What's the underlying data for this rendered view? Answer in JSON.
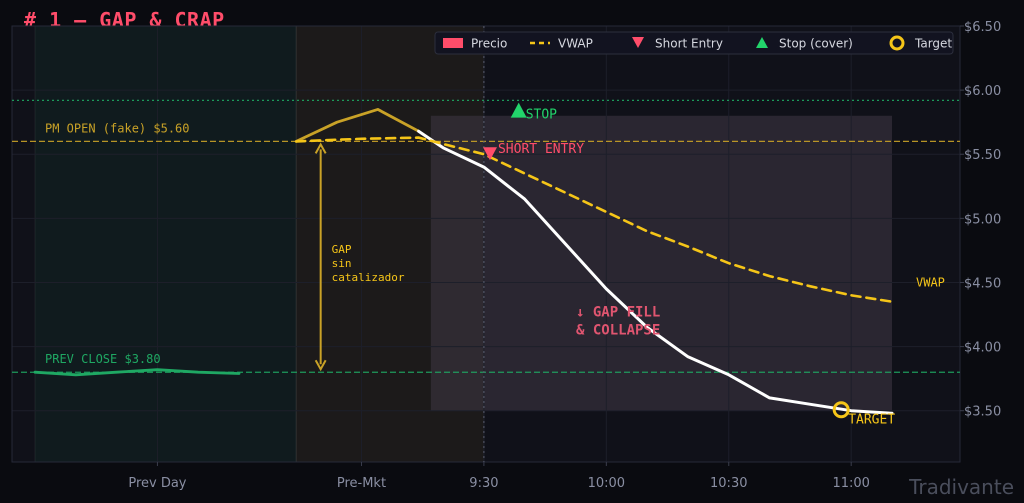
{
  "title": "# 1 — GAP & CRAP",
  "watermark": "Tradivante",
  "colors": {
    "background": "#0a0b10",
    "plot_bg": "#101119",
    "price": "#ffffff",
    "price_prev": "#1fa863",
    "price_premarket": "#c9a227",
    "vwap": "#f5c518",
    "short": "#ff4d6a",
    "stop": "#22d46b",
    "target": "#f5c518",
    "pm_open_line": "#c9a227",
    "prev_close_line": "#1fa863",
    "stop_line": "#1fa863",
    "grid": "#1d1f2a",
    "tick_text": "#8a8fa3",
    "short_zone": "#2a2630",
    "annotation": "#e05570"
  },
  "legend": [
    {
      "label": "Precio",
      "marker": "rect",
      "color": "#ff4d6a"
    },
    {
      "label": "VWAP",
      "marker": "dash",
      "color": "#f5c518"
    },
    {
      "label": "Short Entry",
      "marker": "triangle-down",
      "color": "#ff4d6a"
    },
    {
      "label": "Stop (cover)",
      "marker": "triangle-up",
      "color": "#22d46b"
    },
    {
      "label": "Target",
      "marker": "circle",
      "color": "#f5c518"
    }
  ],
  "chart_data": {
    "type": "line",
    "title": "# 1 — GAP & CRAP",
    "xlabel": "",
    "ylabel": "",
    "x_ticks": [
      "Prev Day",
      "Pre-Mkt",
      "9:30",
      "10:00",
      "10:30",
      "11:00"
    ],
    "y_ticks": [
      "$3.50",
      "$4.00",
      "$4.50",
      "$5.00",
      "$5.50",
      "$6.00",
      "$6.50"
    ],
    "ylim": [
      3.1,
      6.5
    ],
    "xlim": [
      0,
      10
    ],
    "x_tick_positions": [
      1.5,
      4.0,
      5.5,
      7.0,
      8.5,
      10.0
    ],
    "grid": true,
    "legend_position": "top-right",
    "y_axis_side": "right",
    "series": [
      {
        "name": "Precio",
        "segment": "prev_day",
        "x": [
          0.0,
          0.5,
          1.0,
          1.5,
          2.0,
          2.5
        ],
        "y": [
          3.8,
          3.78,
          3.8,
          3.82,
          3.8,
          3.79
        ]
      },
      {
        "name": "Precio",
        "segment": "pre_market",
        "x": [
          3.2,
          3.7,
          4.2,
          4.7
        ],
        "y": [
          5.6,
          5.75,
          5.85,
          5.68
        ]
      },
      {
        "name": "Precio",
        "segment": "session",
        "x": [
          4.7,
          5.0,
          5.5,
          6.0,
          6.5,
          7.0,
          7.5,
          8.0,
          8.5,
          9.0,
          9.5,
          10.0,
          10.5
        ],
        "y": [
          5.68,
          5.55,
          5.4,
          5.15,
          4.8,
          4.45,
          4.15,
          3.92,
          3.78,
          3.6,
          3.55,
          3.5,
          3.48
        ]
      },
      {
        "name": "VWAP",
        "x": [
          3.2,
          4.0,
          4.7,
          5.0,
          5.5,
          6.0,
          6.5,
          7.0,
          7.5,
          8.0,
          8.5,
          9.0,
          9.5,
          10.0,
          10.5
        ],
        "y": [
          5.6,
          5.62,
          5.63,
          5.58,
          5.5,
          5.35,
          5.2,
          5.05,
          4.9,
          4.78,
          4.65,
          4.55,
          4.47,
          4.4,
          4.35
        ]
      }
    ],
    "reference_lines": [
      {
        "y": 5.92,
        "style": "dotted",
        "role": "stop_level"
      },
      {
        "y": 5.6,
        "label": "PM OPEN (fake) $5.60",
        "style": "dashed"
      },
      {
        "y": 3.8,
        "label": "PREV CLOSE $3.80",
        "style": "dashed"
      }
    ],
    "vertical_lines": [
      {
        "x": 5.5,
        "style": "dotted"
      }
    ],
    "regions": [
      {
        "x0": 0.0,
        "x1": 3.2,
        "name": "prev_day"
      },
      {
        "x0": 3.2,
        "x1": 5.5,
        "name": "pre_market"
      },
      {
        "x0": 4.85,
        "x1": 10.5,
        "y0": 3.5,
        "y1": 5.8,
        "name": "short_zone"
      }
    ],
    "markers": {
      "short_entry": {
        "x": 5.55,
        "y": 5.5,
        "label": "SHORT ENTRY"
      },
      "stop": {
        "x": 6.0,
        "y": 5.84,
        "label": "STOP"
      },
      "target": {
        "x": 10.0,
        "y": 3.5,
        "label": "TARGET"
      }
    },
    "gap_arrow": {
      "x": 3.5,
      "y_from": 3.8,
      "y_to": 5.6,
      "label": [
        "GAP",
        "sin",
        "catalizador"
      ]
    },
    "annotations": [
      {
        "text": [
          "↓ GAP FILL",
          "& COLLAPSE"
        ],
        "x": 8.1,
        "y": 4.25
      },
      {
        "text": "VWAP",
        "series_end": true
      }
    ]
  }
}
